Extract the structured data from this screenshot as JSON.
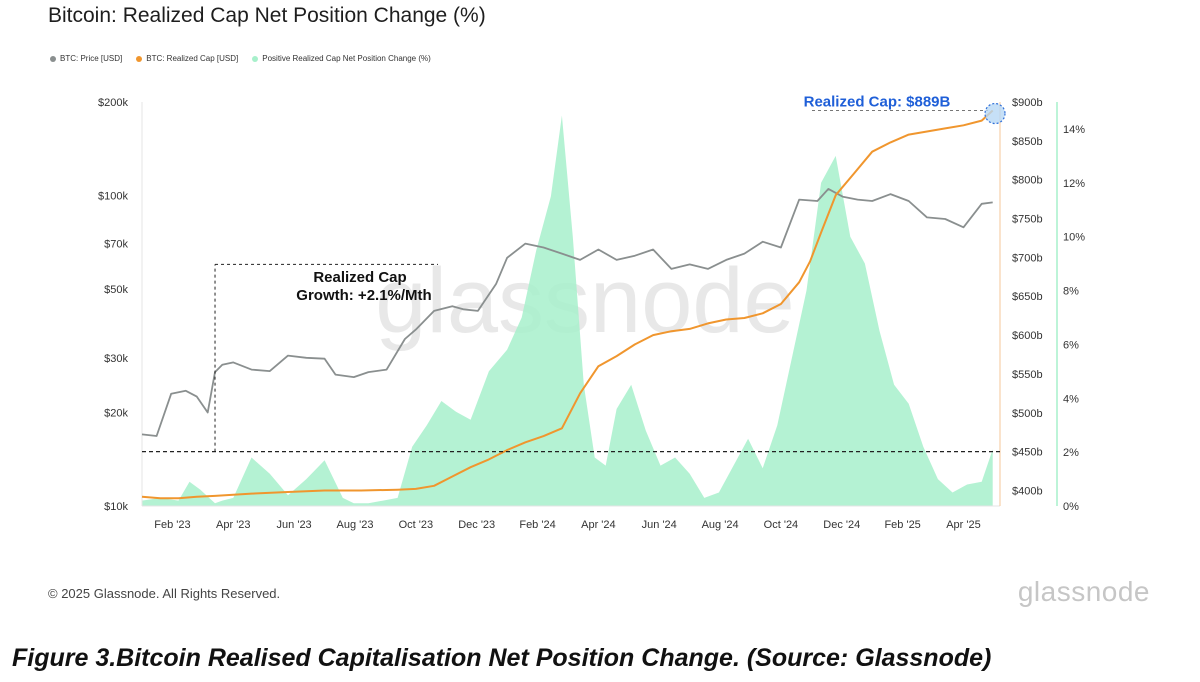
{
  "title": "Bitcoin: Realized Cap Net Position Change (%)",
  "legend": [
    {
      "label": "BTC: Price [USD]",
      "color": "#8a8f8f"
    },
    {
      "label": "BTC: Realized Cap [USD]",
      "color": "#f0962e"
    },
    {
      "label": "Positive Realized Cap Net Position Change (%)",
      "color": "#a7f0cb"
    }
  ],
  "watermark": "glassnode",
  "annotations": {
    "realized_cap_label": "Realized Cap: $889B",
    "growth_line1": "Realized Cap",
    "growth_line2": "Growth: +2.1%/Mth"
  },
  "copyright": "© 2025 Glassnode. All Rights Reserved.",
  "brand": "glassnode",
  "caption": "Figure 3.Bitcoin Realised Capitalisation Net Position Change. (Source: Glassnode)",
  "chart_data": {
    "type": "line",
    "x_ticks": [
      "Feb '23",
      "Apr '23",
      "Jun '23",
      "Aug '23",
      "Oct '23",
      "Dec '23",
      "Feb '24",
      "Apr '24",
      "Jun '24",
      "Aug '24",
      "Oct '24",
      "Dec '24",
      "Feb '25",
      "Apr '25"
    ],
    "left_axis": {
      "scale": "log",
      "ticks": [
        "$10k",
        "$20k",
        "$30k",
        "$50k",
        "$70k",
        "$100k",
        "$200k"
      ],
      "range": [
        10000,
        200000
      ]
    },
    "right_axis_1": {
      "ticks": [
        "$400b",
        "$450b",
        "$500b",
        "$550b",
        "$600b",
        "$650b",
        "$700b",
        "$750b",
        "$800b",
        "$850b",
        "$900b"
      ],
      "range": [
        380,
        900
      ]
    },
    "right_axis_2": {
      "ticks": [
        "0%",
        "2%",
        "4%",
        "6%",
        "8%",
        "10%",
        "12%",
        "14%"
      ],
      "range": [
        0,
        15
      ]
    },
    "series": [
      {
        "name": "BTC: Price [USD]",
        "color": "#8a8f8f",
        "x": [
          2023.0,
          2023.04,
          2023.08,
          2023.12,
          2023.15,
          2023.18,
          2023.2,
          2023.22,
          2023.25,
          2023.3,
          2023.35,
          2023.4,
          2023.45,
          2023.5,
          2023.53,
          2023.58,
          2023.62,
          2023.67,
          2023.72,
          2023.75,
          2023.8,
          2023.85,
          2023.88,
          2023.92,
          2023.97,
          2024.0,
          2024.05,
          2024.1,
          2024.15,
          2024.2,
          2024.25,
          2024.3,
          2024.35,
          2024.4,
          2024.45,
          2024.5,
          2024.55,
          2024.6,
          2024.65,
          2024.7,
          2024.75,
          2024.8,
          2024.85,
          2024.88,
          2024.92,
          2024.96,
          2025.0,
          2025.05,
          2025.1,
          2025.15,
          2025.2,
          2025.25,
          2025.3,
          2025.33
        ],
        "values": [
          17000,
          16800,
          23000,
          23500,
          22500,
          20000,
          27000,
          28500,
          29000,
          27500,
          27200,
          30500,
          30000,
          29800,
          26500,
          26000,
          27000,
          27500,
          34500,
          37000,
          42500,
          44000,
          43000,
          42500,
          52000,
          63000,
          70000,
          68000,
          65000,
          62000,
          67000,
          62000,
          64000,
          67000,
          58000,
          60000,
          58000,
          62000,
          65000,
          71000,
          68000,
          97000,
          96000,
          105000,
          99000,
          97000,
          96000,
          101000,
          96000,
          85000,
          84000,
          79000,
          94000,
          95000
        ]
      },
      {
        "name": "BTC: Realized Cap [USD]",
        "color": "#f0962e",
        "x": [
          2023.0,
          2023.05,
          2023.1,
          2023.15,
          2023.2,
          2023.3,
          2023.4,
          2023.5,
          2023.6,
          2023.7,
          2023.75,
          2023.8,
          2023.85,
          2023.9,
          2023.95,
          2024.0,
          2024.05,
          2024.1,
          2024.15,
          2024.2,
          2024.25,
          2024.3,
          2024.35,
          2024.4,
          2024.45,
          2024.5,
          2024.55,
          2024.6,
          2024.65,
          2024.7,
          2024.75,
          2024.8,
          2024.83,
          2024.86,
          2024.9,
          2024.95,
          2025.0,
          2025.05,
          2025.1,
          2025.15,
          2025.2,
          2025.25,
          2025.3,
          2025.33
        ],
        "values": [
          392,
          390,
          390,
          392,
          393,
          396,
          398,
          400,
          400,
          401,
          402,
          406,
          418,
          430,
          440,
          452,
          462,
          470,
          480,
          525,
          560,
          573,
          588,
          600,
          605,
          608,
          615,
          620,
          622,
          628,
          640,
          668,
          695,
          732,
          780,
          808,
          836,
          848,
          858,
          862,
          866,
          870,
          876,
          889
        ]
      },
      {
        "name": "Positive Realized Cap Net Position Change (%)",
        "color": "#a7f0cb",
        "x": [
          2023.0,
          2023.05,
          2023.1,
          2023.13,
          2023.16,
          2023.2,
          2023.22,
          2023.25,
          2023.3,
          2023.35,
          2023.4,
          2023.45,
          2023.5,
          2023.55,
          2023.58,
          2023.62,
          2023.66,
          2023.7,
          2023.74,
          2023.78,
          2023.82,
          2023.86,
          2023.9,
          2023.95,
          2024.0,
          2024.04,
          2024.08,
          2024.12,
          2024.15,
          2024.18,
          2024.21,
          2024.24,
          2024.27,
          2024.3,
          2024.34,
          2024.38,
          2024.42,
          2024.46,
          2024.5,
          2024.54,
          2024.58,
          2024.62,
          2024.66,
          2024.7,
          2024.74,
          2024.78,
          2024.82,
          2024.86,
          2024.9,
          2024.94,
          2024.98,
          2025.02,
          2025.06,
          2025.1,
          2025.14,
          2025.18,
          2025.22,
          2025.26,
          2025.3,
          2025.33
        ],
        "values": [
          0.2,
          0.3,
          0.2,
          0.9,
          0.6,
          0.1,
          0.2,
          0.3,
          1.8,
          1.2,
          0.4,
          1.0,
          1.7,
          0.3,
          0.1,
          0.1,
          0.2,
          0.3,
          2.2,
          3.0,
          3.9,
          3.5,
          3.2,
          5.0,
          5.8,
          7.0,
          9.5,
          11.5,
          14.5,
          10.0,
          4.5,
          1.8,
          1.5,
          3.6,
          4.5,
          2.8,
          1.5,
          1.8,
          1.2,
          0.3,
          0.5,
          1.5,
          2.5,
          1.4,
          3.0,
          5.5,
          8.0,
          12.0,
          13.0,
          10.0,
          9.0,
          6.5,
          4.5,
          3.8,
          2.2,
          1.0,
          0.5,
          0.8,
          0.9,
          2.1
        ]
      }
    ],
    "reference_levels": {
      "realized_cap_start_b": 450,
      "realized_cap_end_b": 889,
      "growth_start_price": 60000
    }
  }
}
